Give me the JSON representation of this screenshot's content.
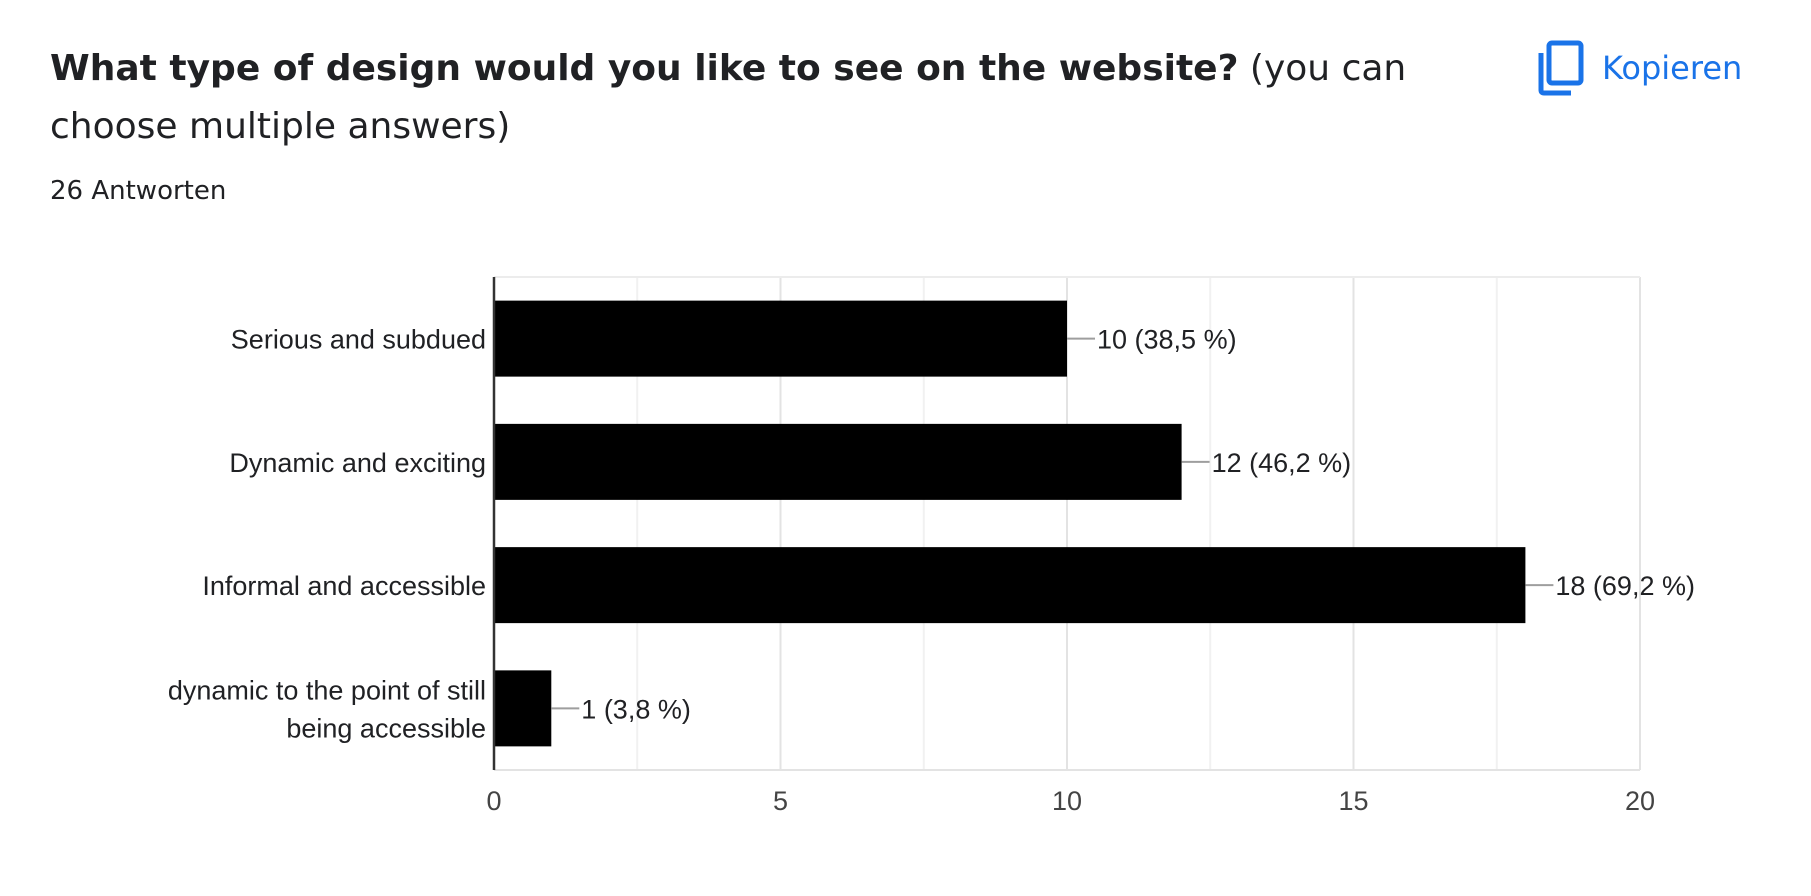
{
  "question": {
    "title_bold": "What type of design would you like to see on the website?",
    "title_rest": " (you can choose multiple answers)"
  },
  "responses_label": "26 Antworten",
  "copy_button": {
    "label": "Kopieren",
    "icon": "copy-icon",
    "color": "#1a73e8"
  },
  "chart_data": {
    "type": "bar",
    "orientation": "horizontal",
    "categories": [
      "Serious and subdued",
      "Dynamic and exciting",
      "Informal and accessible",
      "dynamic to the point of still being accessible"
    ],
    "values": [
      10,
      12,
      18,
      1
    ],
    "data_labels": [
      "10 (38,5 %)",
      "12 (46,2 %)",
      "18 (69,2 %)",
      "1 (3,8 %)"
    ],
    "xlim": [
      0,
      20
    ],
    "xticks": [
      0,
      5,
      10,
      15,
      20
    ],
    "grid": true,
    "bar_color": "#000000"
  }
}
